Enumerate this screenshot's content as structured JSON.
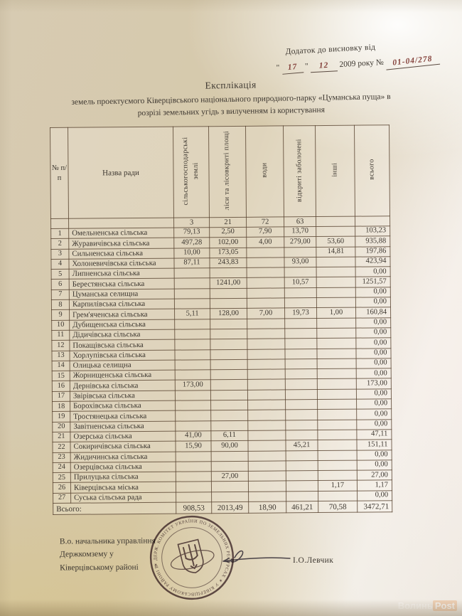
{
  "annex": {
    "line1": "Додаток до висновку від",
    "q": "\"",
    "day": "17",
    "month": "12",
    "year_text": "2009 року №",
    "number": "01-04/278"
  },
  "title": {
    "line1": "Експлікація",
    "line2": "земель проектуємого Ківерцівського національного природного-парку «Цуманська пуща» в",
    "line3": "розрізі земельних угідь з вилученням із користування"
  },
  "table": {
    "headers": [
      "№ п/п",
      "Назва ради",
      "сільськогосподарські землі",
      "ліси та лісовкриті площі",
      "води",
      "відкриті заболочені",
      "інші",
      "всього"
    ],
    "code_row": {
      "agri": "3",
      "forest": "21",
      "water": "72",
      "swamp": "63"
    },
    "rows": [
      {
        "n": "1",
        "name": "Омельненська сільська",
        "agri": "79,13",
        "forest": "2,50",
        "water": "7,90",
        "swamp": "13,70",
        "other": "",
        "total": "103,23"
      },
      {
        "n": "2",
        "name": "Журавичівська сільська",
        "agri": "497,28",
        "forest": "102,00",
        "water": "4,00",
        "swamp": "279,00",
        "other": "53,60",
        "total": "935,88"
      },
      {
        "n": "3",
        "name": "Сильненська сільська",
        "agri": "10,00",
        "forest": "173,05",
        "water": "",
        "swamp": "",
        "other": "14,81",
        "total": "197,86"
      },
      {
        "n": "4",
        "name": "Холоневичівська сільська",
        "agri": "87,11",
        "forest": "243,83",
        "water": "",
        "swamp": "93,00",
        "other": "",
        "total": "423,94"
      },
      {
        "n": "5",
        "name": "Липненська сільська",
        "agri": "",
        "forest": "",
        "water": "",
        "swamp": "",
        "other": "",
        "total": "0,00"
      },
      {
        "n": "6",
        "name": "Берестянська сільська",
        "agri": "",
        "forest": "1241,00",
        "water": "",
        "swamp": "10,57",
        "other": "",
        "total": "1251,57"
      },
      {
        "n": "7",
        "name": "Цуманська селищна",
        "agri": "",
        "forest": "",
        "water": "",
        "swamp": "",
        "other": "",
        "total": "0,00"
      },
      {
        "n": "8",
        "name": "Карпилівська сільська",
        "agri": "",
        "forest": "",
        "water": "",
        "swamp": "",
        "other": "",
        "total": "0,00"
      },
      {
        "n": "9",
        "name": "Грем'яченська сільська",
        "agri": "5,11",
        "forest": "128,00",
        "water": "7,00",
        "swamp": "19,73",
        "other": "1,00",
        "total": "160,84"
      },
      {
        "n": "10",
        "name": "Дубищенська сільська",
        "agri": "",
        "forest": "",
        "water": "",
        "swamp": "",
        "other": "",
        "total": "0,00"
      },
      {
        "n": "11",
        "name": "Дідичівська сільська",
        "agri": "",
        "forest": "",
        "water": "",
        "swamp": "",
        "other": "",
        "total": "0,00"
      },
      {
        "n": "12",
        "name": "Покащівська сільська",
        "agri": "",
        "forest": "",
        "water": "",
        "swamp": "",
        "other": "",
        "total": "0,00"
      },
      {
        "n": "13",
        "name": "Хорлупівська сільська",
        "agri": "",
        "forest": "",
        "water": "",
        "swamp": "",
        "other": "",
        "total": "0,00"
      },
      {
        "n": "14",
        "name": "Олицька селищна",
        "agri": "",
        "forest": "",
        "water": "",
        "swamp": "",
        "other": "",
        "total": "0,00"
      },
      {
        "n": "15",
        "name": "Жорнищенська сільська",
        "agri": "",
        "forest": "",
        "water": "",
        "swamp": "",
        "other": "",
        "total": "0,00"
      },
      {
        "n": "16",
        "name": "Дернівська сільська",
        "agri": "173,00",
        "forest": "",
        "water": "",
        "swamp": "",
        "other": "",
        "total": "173,00"
      },
      {
        "n": "17",
        "name": "Звірівська сільська",
        "agri": "",
        "forest": "",
        "water": "",
        "swamp": "",
        "other": "",
        "total": "0,00"
      },
      {
        "n": "18",
        "name": "Борохівська сільська",
        "agri": "",
        "forest": "",
        "water": "",
        "swamp": "",
        "other": "",
        "total": "0,00"
      },
      {
        "n": "19",
        "name": "Тростянецька сільська",
        "agri": "",
        "forest": "",
        "water": "",
        "swamp": "",
        "other": "",
        "total": "0,00"
      },
      {
        "n": "20",
        "name": "Завітненська сільська",
        "agri": "",
        "forest": "",
        "water": "",
        "swamp": "",
        "other": "",
        "total": "0,00"
      },
      {
        "n": "21",
        "name": "Озерська сільська",
        "agri": "41,00",
        "forest": "6,11",
        "water": "",
        "swamp": "",
        "other": "",
        "total": "47,11"
      },
      {
        "n": "22",
        "name": "Сокиричівська сільська",
        "agri": "15,90",
        "forest": "90,00",
        "water": "",
        "swamp": "45,21",
        "other": "",
        "total": "151,11"
      },
      {
        "n": "23",
        "name": "Жидичинська сільська",
        "agri": "",
        "forest": "",
        "water": "",
        "swamp": "",
        "other": "",
        "total": "0,00"
      },
      {
        "n": "24",
        "name": "Озерцівська сільська",
        "agri": "",
        "forest": "",
        "water": "",
        "swamp": "",
        "other": "",
        "total": "0,00"
      },
      {
        "n": "25",
        "name": "Прилуцька сільська",
        "agri": "",
        "forest": "27,00",
        "water": "",
        "swamp": "",
        "other": "",
        "total": "27,00"
      },
      {
        "n": "26",
        "name": "Ківерцівська міська",
        "agri": "",
        "forest": "",
        "water": "",
        "swamp": "",
        "other": "1,17",
        "total": "1,17"
      },
      {
        "n": "27",
        "name": "Суська сільська рада",
        "agri": "",
        "forest": "",
        "water": "",
        "swamp": "",
        "other": "",
        "total": "0,00"
      }
    ],
    "total_row": {
      "label": "Всього:",
      "agri": "908,53",
      "forest": "2013,49",
      "water": "18,90",
      "swamp": "461,21",
      "other": "70,58",
      "total": "3472,71"
    }
  },
  "footer": {
    "line1": "В.о. начальника управління",
    "line2": "Держкомзему у",
    "line3": "Ківерцівському районі",
    "signer": "І.О.Левчик"
  },
  "stamp": {
    "ring_text": "✶ ДЕРЖ. КОМІТЕТ УКРАЇНИ ПО ЗЕМЕЛЬНИХ РЕСУРСАХ ✶ У КІВЕРЦІВСЬКОМУ РАЙОНІ ВОЛИНСЬКОЇ ОБЛ."
  },
  "watermark": {
    "part1": "Волинь",
    "part2": "Post"
  },
  "colors": {
    "ink": "#3e3831",
    "hand_ink": "#84403a",
    "stamp": "#564149",
    "table_line": "#543f2c",
    "paper_tan": "#d6c9ab",
    "paper_light": "#f3efe8"
  }
}
